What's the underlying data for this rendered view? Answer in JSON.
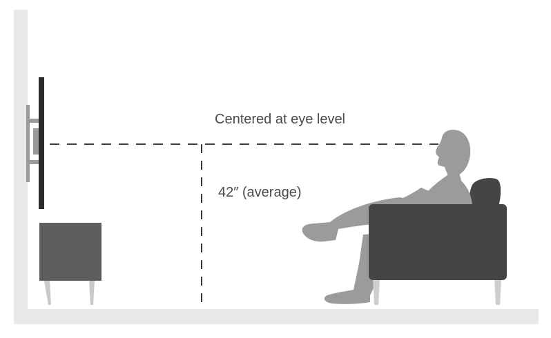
{
  "labels": {
    "eye_level": "Centered at eye level",
    "height": "42″ (average)"
  },
  "colors": {
    "wall": "#e9e9e9",
    "tv": "#2c2c2c",
    "mount": "#9a9a9a",
    "cabinet": "#5e5e5e",
    "cabinet_legs": "#c9c9c9",
    "person": "#9b9b9b",
    "chair": "#454545",
    "chair_legs": "#cfcfcf",
    "guide_line": "#3a3a3a",
    "text": "#4a4a4a"
  }
}
